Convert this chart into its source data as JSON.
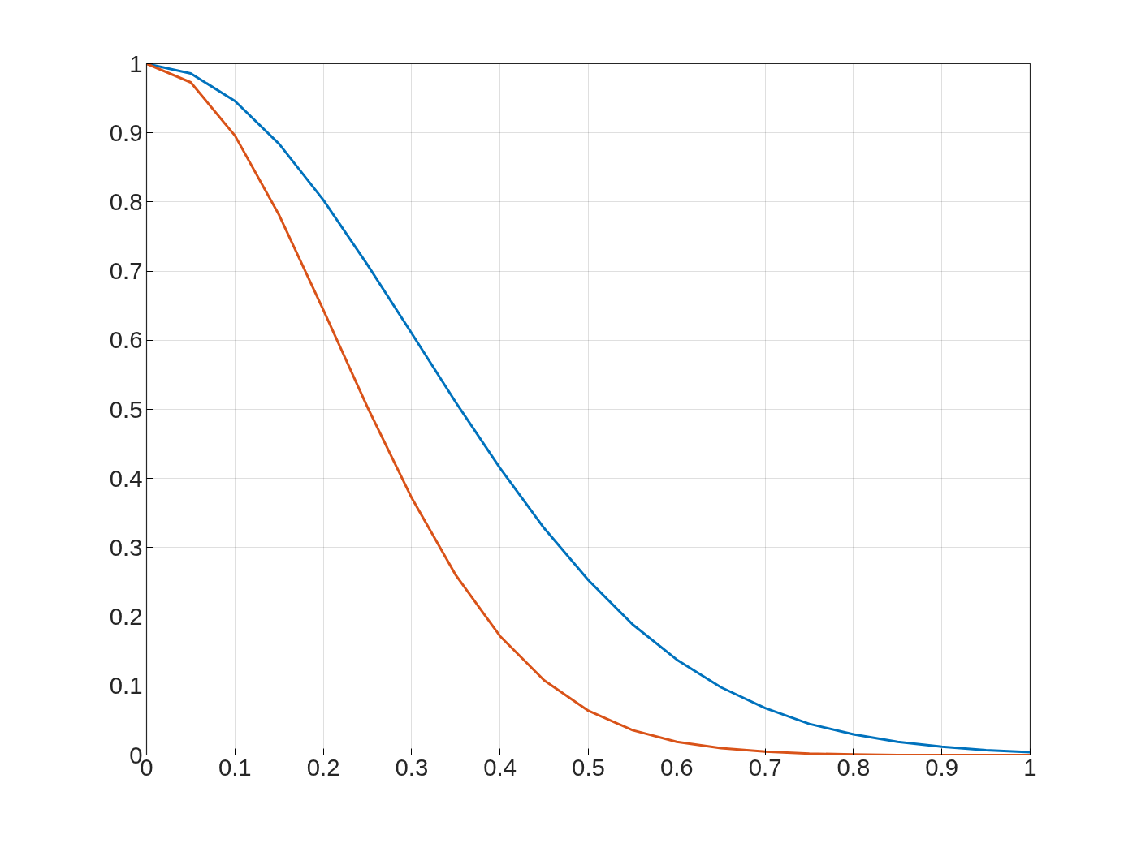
{
  "chart_data": {
    "type": "line",
    "x": [
      0,
      0.05,
      0.1,
      0.15,
      0.2,
      0.25,
      0.3,
      0.35,
      0.4,
      0.45,
      0.5,
      0.55,
      0.6,
      0.65,
      0.7,
      0.75,
      0.8,
      0.85,
      0.9,
      0.95,
      1
    ],
    "series": [
      {
        "color": "#0072bd",
        "values": [
          1,
          0.986,
          0.946,
          0.884,
          0.803,
          0.709,
          0.61,
          0.51,
          0.415,
          0.328,
          0.253,
          0.189,
          0.138,
          0.098,
          0.068,
          0.045,
          0.03,
          0.019,
          0.012,
          0.007,
          0.004
        ]
      },
      {
        "color": "#d95319",
        "values": [
          1,
          0.973,
          0.896,
          0.781,
          0.644,
          0.503,
          0.372,
          0.26,
          0.172,
          0.108,
          0.064,
          0.036,
          0.019,
          0.01,
          0.005,
          0.002,
          0.001,
          0,
          0,
          0,
          0
        ]
      }
    ],
    "xlim": [
      0,
      1
    ],
    "ylim": [
      0,
      1
    ],
    "xticks": [
      0,
      0.1,
      0.2,
      0.3,
      0.4,
      0.5,
      0.6,
      0.7,
      0.8,
      0.9,
      1
    ],
    "yticks": [
      0,
      0.1,
      0.2,
      0.3,
      0.4,
      0.5,
      0.6,
      0.7,
      0.8,
      0.9,
      1
    ],
    "grid": true,
    "line_style": "solid",
    "marker": "none"
  }
}
